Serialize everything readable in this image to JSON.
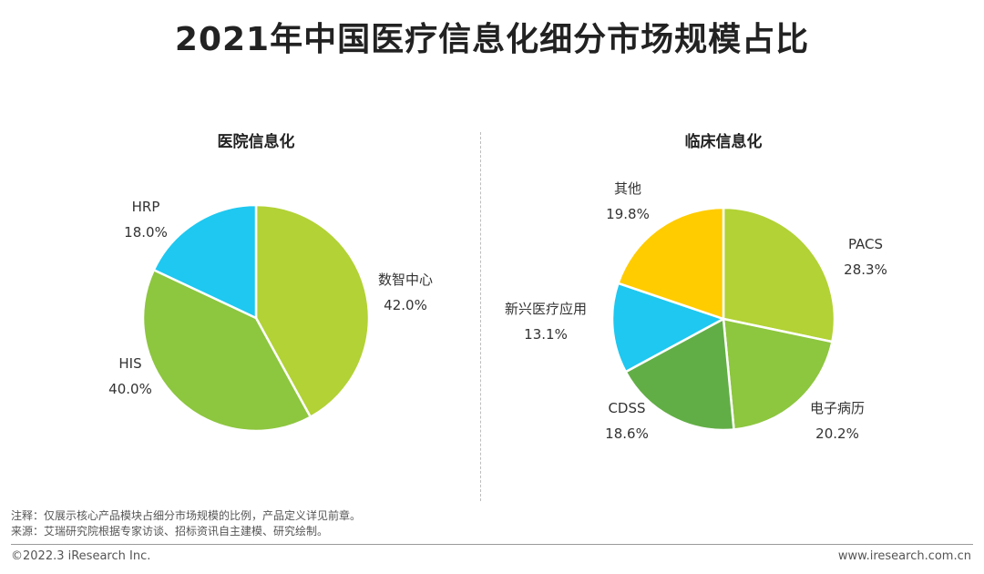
{
  "title": "2021年中国医疗信息化细分市场规模占比",
  "chart_data": [
    {
      "type": "pie",
      "title": "医院信息化",
      "slices": [
        {
          "label": "数智中心",
          "value": 42.0,
          "display": "42.0%",
          "color": "#B2D235"
        },
        {
          "label": "HIS",
          "value": 40.0,
          "display": "40.0%",
          "color": "#8DC63F"
        },
        {
          "label": "HRP",
          "value": 18.0,
          "display": "18.0%",
          "color": "#1EC8F0"
        }
      ]
    },
    {
      "type": "pie",
      "title": "临床信息化",
      "slices": [
        {
          "label": "PACS",
          "value": 28.3,
          "display": "28.3%",
          "color": "#B2D235"
        },
        {
          "label": "电子病历",
          "value": 20.2,
          "display": "20.2%",
          "color": "#8DC63F"
        },
        {
          "label": "CDSS",
          "value": 18.6,
          "display": "18.6%",
          "color": "#62AE46"
        },
        {
          "label": "新兴医疗应用",
          "value": 13.1,
          "display": "13.1%",
          "color": "#1EC8F0"
        },
        {
          "label": "其他",
          "value": 19.8,
          "display": "19.8%",
          "color": "#FFCC00"
        }
      ]
    }
  ],
  "notes": {
    "note": "注释：仅展示核心产品模块占细分市场规模的比例，产品定义详见前章。",
    "source": "来源：艾瑞研究院根据专家访谈、招标资讯自主建模、研究绘制。"
  },
  "footer": {
    "copyright": "©2022.3 iResearch Inc.",
    "website": "www.iresearch.com.cn"
  }
}
